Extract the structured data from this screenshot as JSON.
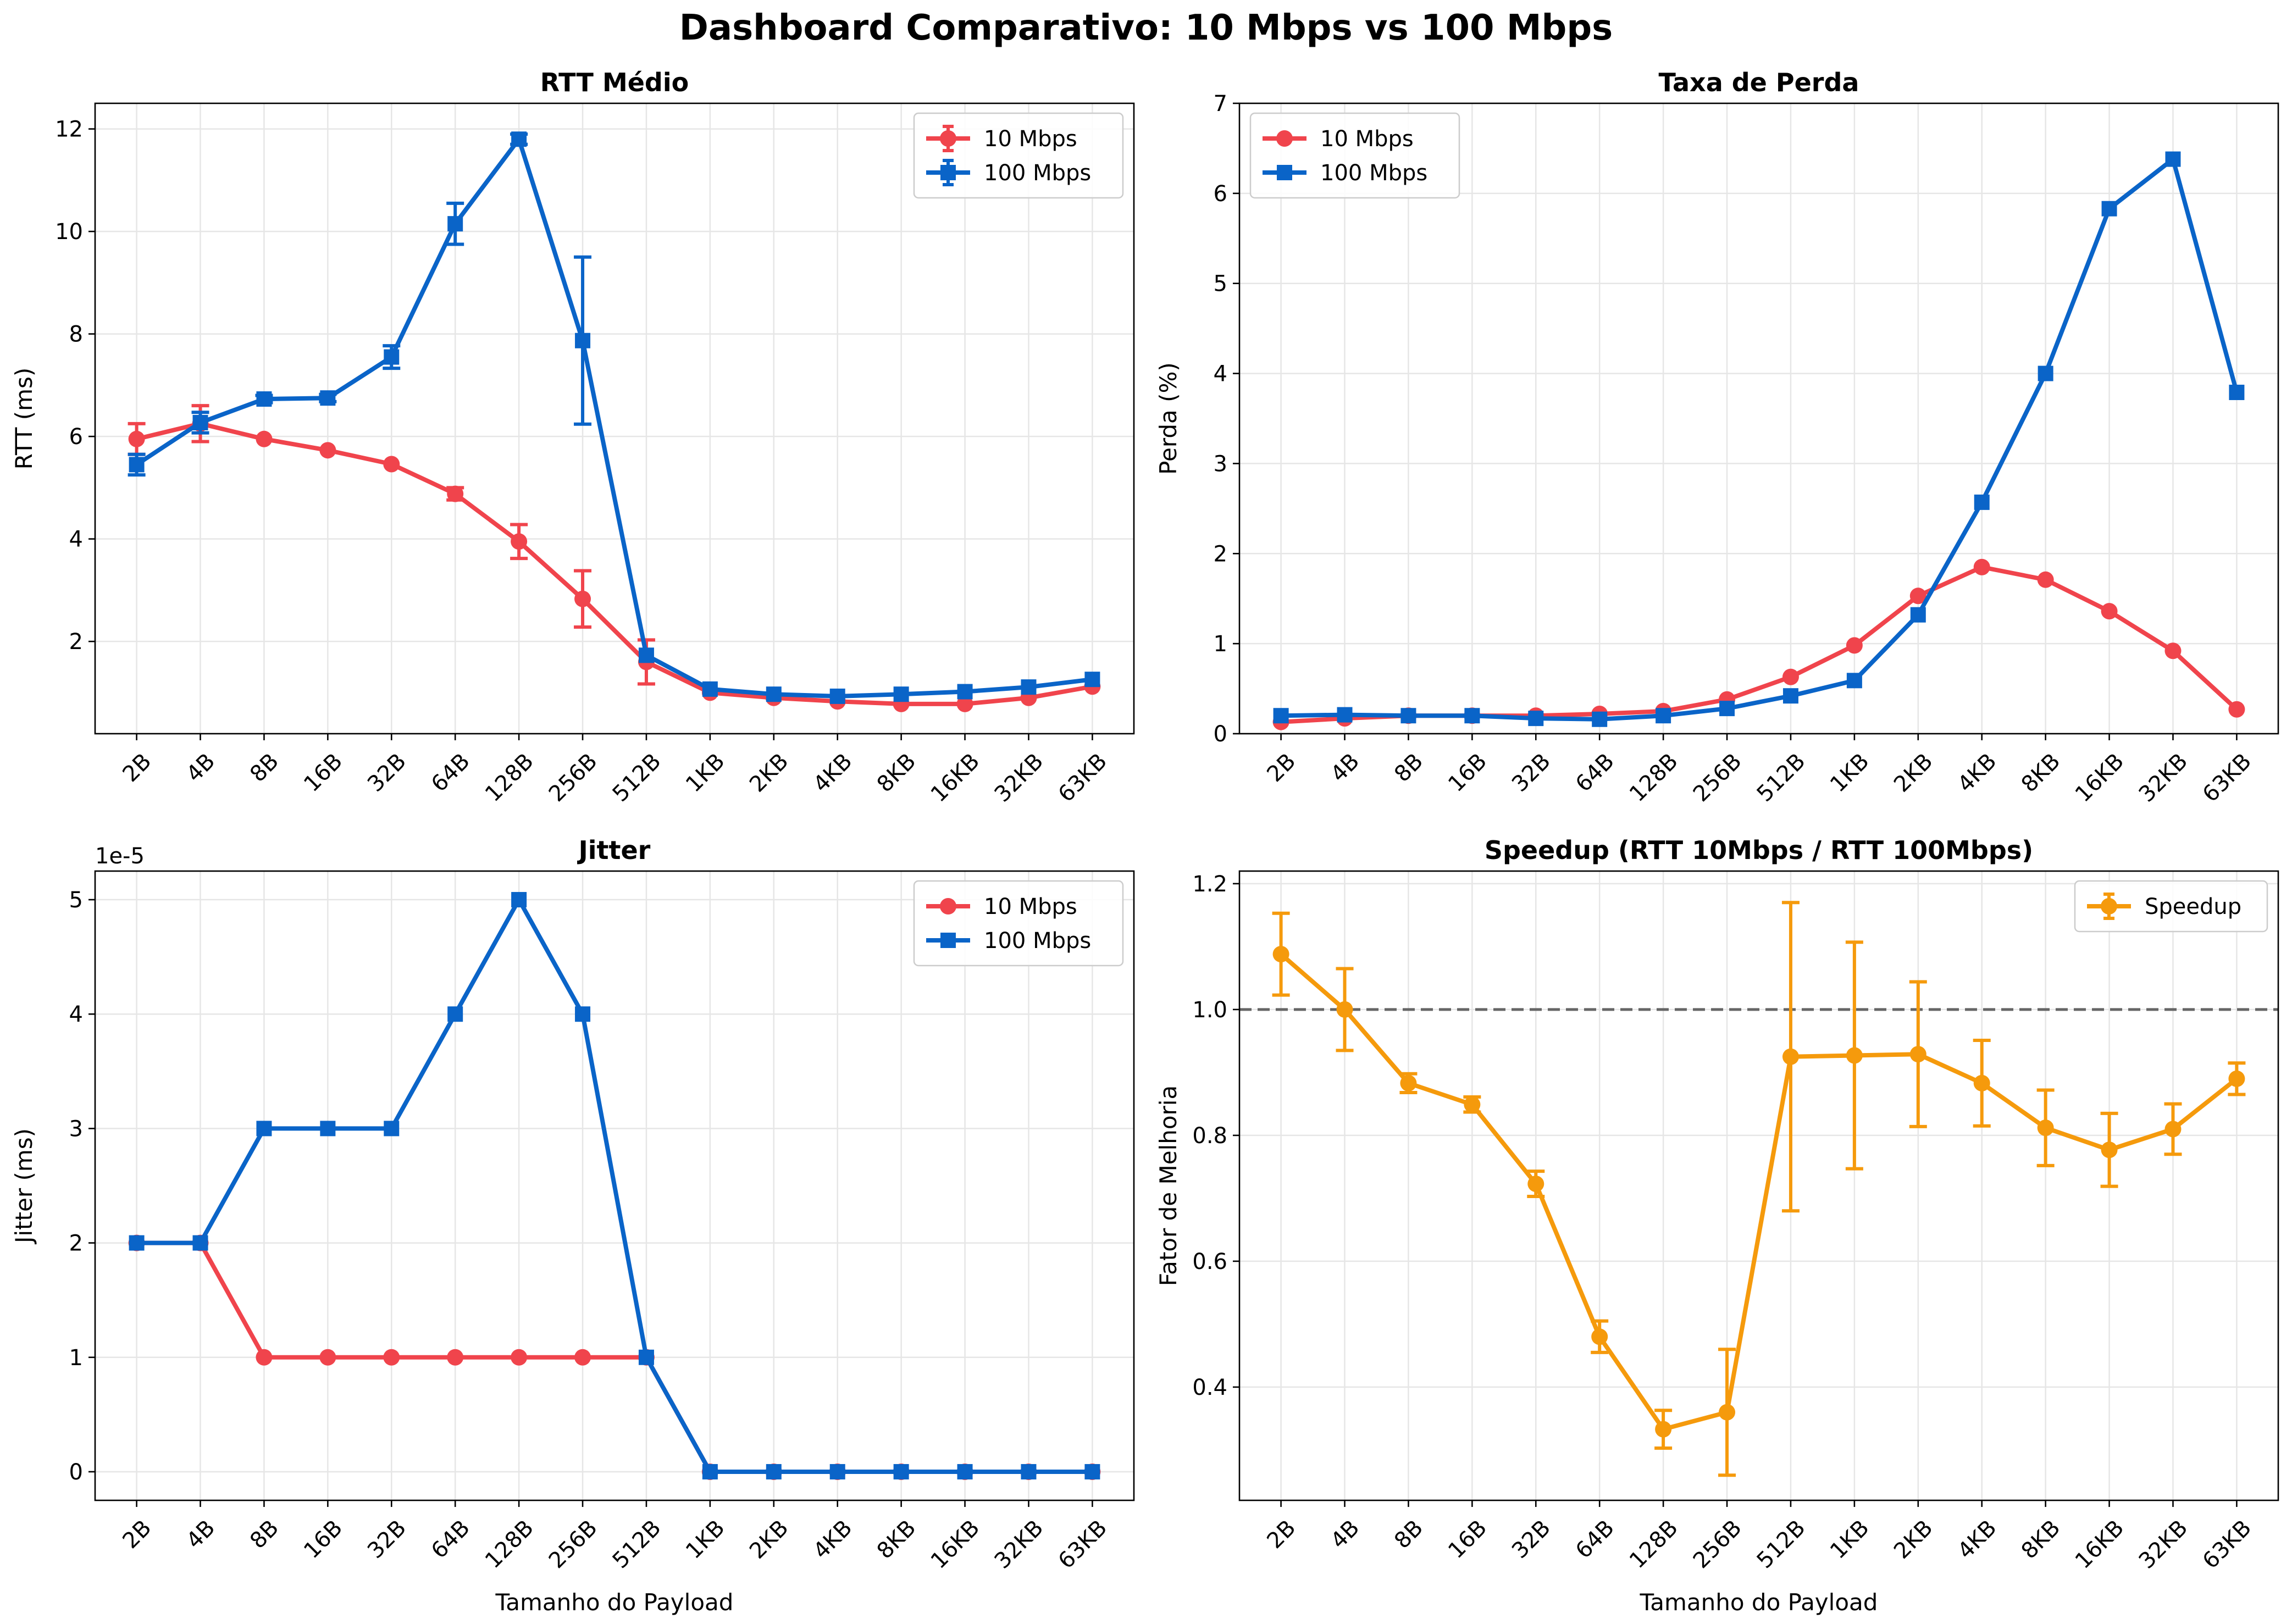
{
  "suptitle": "Dashboard Comparativo: 10 Mbps vs 100 Mbps",
  "colors": {
    "s10": "#f0444c",
    "s100": "#0a64c8",
    "speedup": "#f59a0c",
    "reference": "#666666"
  },
  "chart_data": [
    {
      "type": "line",
      "title": "RTT Médio",
      "xlabel": "",
      "ylabel": "RTT (ms)",
      "categories": [
        "2B",
        "4B",
        "8B",
        "16B",
        "32B",
        "64B",
        "128B",
        "256B",
        "512B",
        "1KB",
        "2KB",
        "4KB",
        "8KB",
        "16KB",
        "32KB",
        "63KB"
      ],
      "ylim": [
        0.2,
        12.5
      ],
      "yticks": [
        2,
        4,
        6,
        8,
        10,
        12
      ],
      "ytick_labels": [
        "2",
        "4",
        "6",
        "8",
        "10",
        "12"
      ],
      "grid": true,
      "legend_position": "top-right",
      "series": [
        {
          "name": "10 Mbps",
          "marker": "circle",
          "color": "#f0444c",
          "values": [
            5.95,
            6.25,
            5.95,
            5.73,
            5.46,
            4.88,
            3.95,
            2.83,
            1.6,
            1.0,
            0.9,
            0.83,
            0.78,
            0.78,
            0.9,
            1.12
          ],
          "errors": [
            0.3,
            0.35,
            0.0,
            0.0,
            0.0,
            0.12,
            0.33,
            0.55,
            0.43,
            0.0,
            0.0,
            0.0,
            0.0,
            0.0,
            0.0,
            0.0
          ]
        },
        {
          "name": "100 Mbps",
          "marker": "square",
          "color": "#0a64c8",
          "values": [
            5.45,
            6.27,
            6.73,
            6.75,
            7.55,
            10.15,
            11.8,
            7.87,
            1.73,
            1.07,
            0.97,
            0.93,
            0.97,
            1.02,
            1.11,
            1.26
          ],
          "errors": [
            0.2,
            0.2,
            0.07,
            0.07,
            0.22,
            0.4,
            0.1,
            1.63,
            0.0,
            0.0,
            0.0,
            0.0,
            0.0,
            0.0,
            0.0,
            0.0
          ]
        }
      ]
    },
    {
      "type": "line",
      "title": "Taxa de Perda",
      "xlabel": "",
      "ylabel": "Perda (%)",
      "categories": [
        "2B",
        "4B",
        "8B",
        "16B",
        "32B",
        "64B",
        "128B",
        "256B",
        "512B",
        "1KB",
        "2KB",
        "4KB",
        "8KB",
        "16KB",
        "32KB",
        "63KB"
      ],
      "ylim": [
        0,
        7
      ],
      "yticks": [
        0,
        1,
        2,
        3,
        4,
        5,
        6,
        7
      ],
      "ytick_labels": [
        "0",
        "1",
        "2",
        "3",
        "4",
        "5",
        "6",
        "7"
      ],
      "grid": true,
      "legend_position": "top-left",
      "series": [
        {
          "name": "10 Mbps",
          "marker": "circle",
          "color": "#f0444c",
          "values": [
            0.13,
            0.17,
            0.2,
            0.2,
            0.2,
            0.22,
            0.25,
            0.38,
            0.63,
            0.98,
            1.53,
            1.85,
            1.71,
            1.36,
            0.92,
            0.27
          ]
        },
        {
          "name": "100 Mbps",
          "marker": "square",
          "color": "#0a64c8",
          "values": [
            0.2,
            0.21,
            0.2,
            0.2,
            0.17,
            0.16,
            0.2,
            0.28,
            0.42,
            0.59,
            1.32,
            2.57,
            4.0,
            5.83,
            6.38,
            3.79
          ]
        }
      ]
    },
    {
      "type": "line",
      "title": "Jitter",
      "xlabel": "Tamanho do Payload",
      "ylabel": "Jitter (ms)",
      "y_multiplier": "1e-5",
      "categories": [
        "2B",
        "4B",
        "8B",
        "16B",
        "32B",
        "64B",
        "128B",
        "256B",
        "512B",
        "1KB",
        "2KB",
        "4KB",
        "8KB",
        "16KB",
        "32KB",
        "63KB"
      ],
      "ylim": [
        -0.25,
        5.25
      ],
      "yticks": [
        0,
        1,
        2,
        3,
        4,
        5
      ],
      "ytick_labels": [
        "0",
        "1",
        "2",
        "3",
        "4",
        "5"
      ],
      "grid": true,
      "legend_position": "top-right",
      "series": [
        {
          "name": "10 Mbps",
          "marker": "circle",
          "color": "#f0444c",
          "values": [
            2,
            2,
            1,
            1,
            1,
            1,
            1,
            1,
            1,
            0,
            0,
            0,
            0,
            0,
            0,
            0
          ]
        },
        {
          "name": "100 Mbps",
          "marker": "square",
          "color": "#0a64c8",
          "values": [
            2,
            2,
            3,
            3,
            3,
            4,
            5,
            4,
            1,
            0,
            0,
            0,
            0,
            0,
            0,
            0
          ]
        }
      ]
    },
    {
      "type": "line",
      "title": "Speedup (RTT 10Mbps / RTT 100Mbps)",
      "xlabel": "Tamanho do Payload",
      "ylabel": "Fator de Melhoria",
      "categories": [
        "2B",
        "4B",
        "8B",
        "16B",
        "32B",
        "64B",
        "128B",
        "256B",
        "512B",
        "1KB",
        "2KB",
        "4KB",
        "8KB",
        "16KB",
        "32KB",
        "63KB"
      ],
      "ylim": [
        0.22,
        1.22
      ],
      "yticks": [
        0.4,
        0.6,
        0.8,
        1.0,
        1.2
      ],
      "ytick_labels": [
        "0.4",
        "0.6",
        "0.8",
        "1.0",
        "1.2"
      ],
      "grid": true,
      "legend_position": "top-right",
      "reference_line": 1.0,
      "series": [
        {
          "name": "Speedup",
          "marker": "circle",
          "color": "#f59a0c",
          "values": [
            1.088,
            1.0,
            0.883,
            0.849,
            0.723,
            0.48,
            0.333,
            0.36,
            0.925,
            0.927,
            0.929,
            0.883,
            0.812,
            0.777,
            0.81,
            0.89
          ],
          "errors": [
            0.065,
            0.065,
            0.015,
            0.012,
            0.02,
            0.025,
            0.03,
            0.1,
            0.245,
            0.18,
            0.115,
            0.068,
            0.06,
            0.058,
            0.04,
            0.025
          ]
        }
      ]
    }
  ]
}
